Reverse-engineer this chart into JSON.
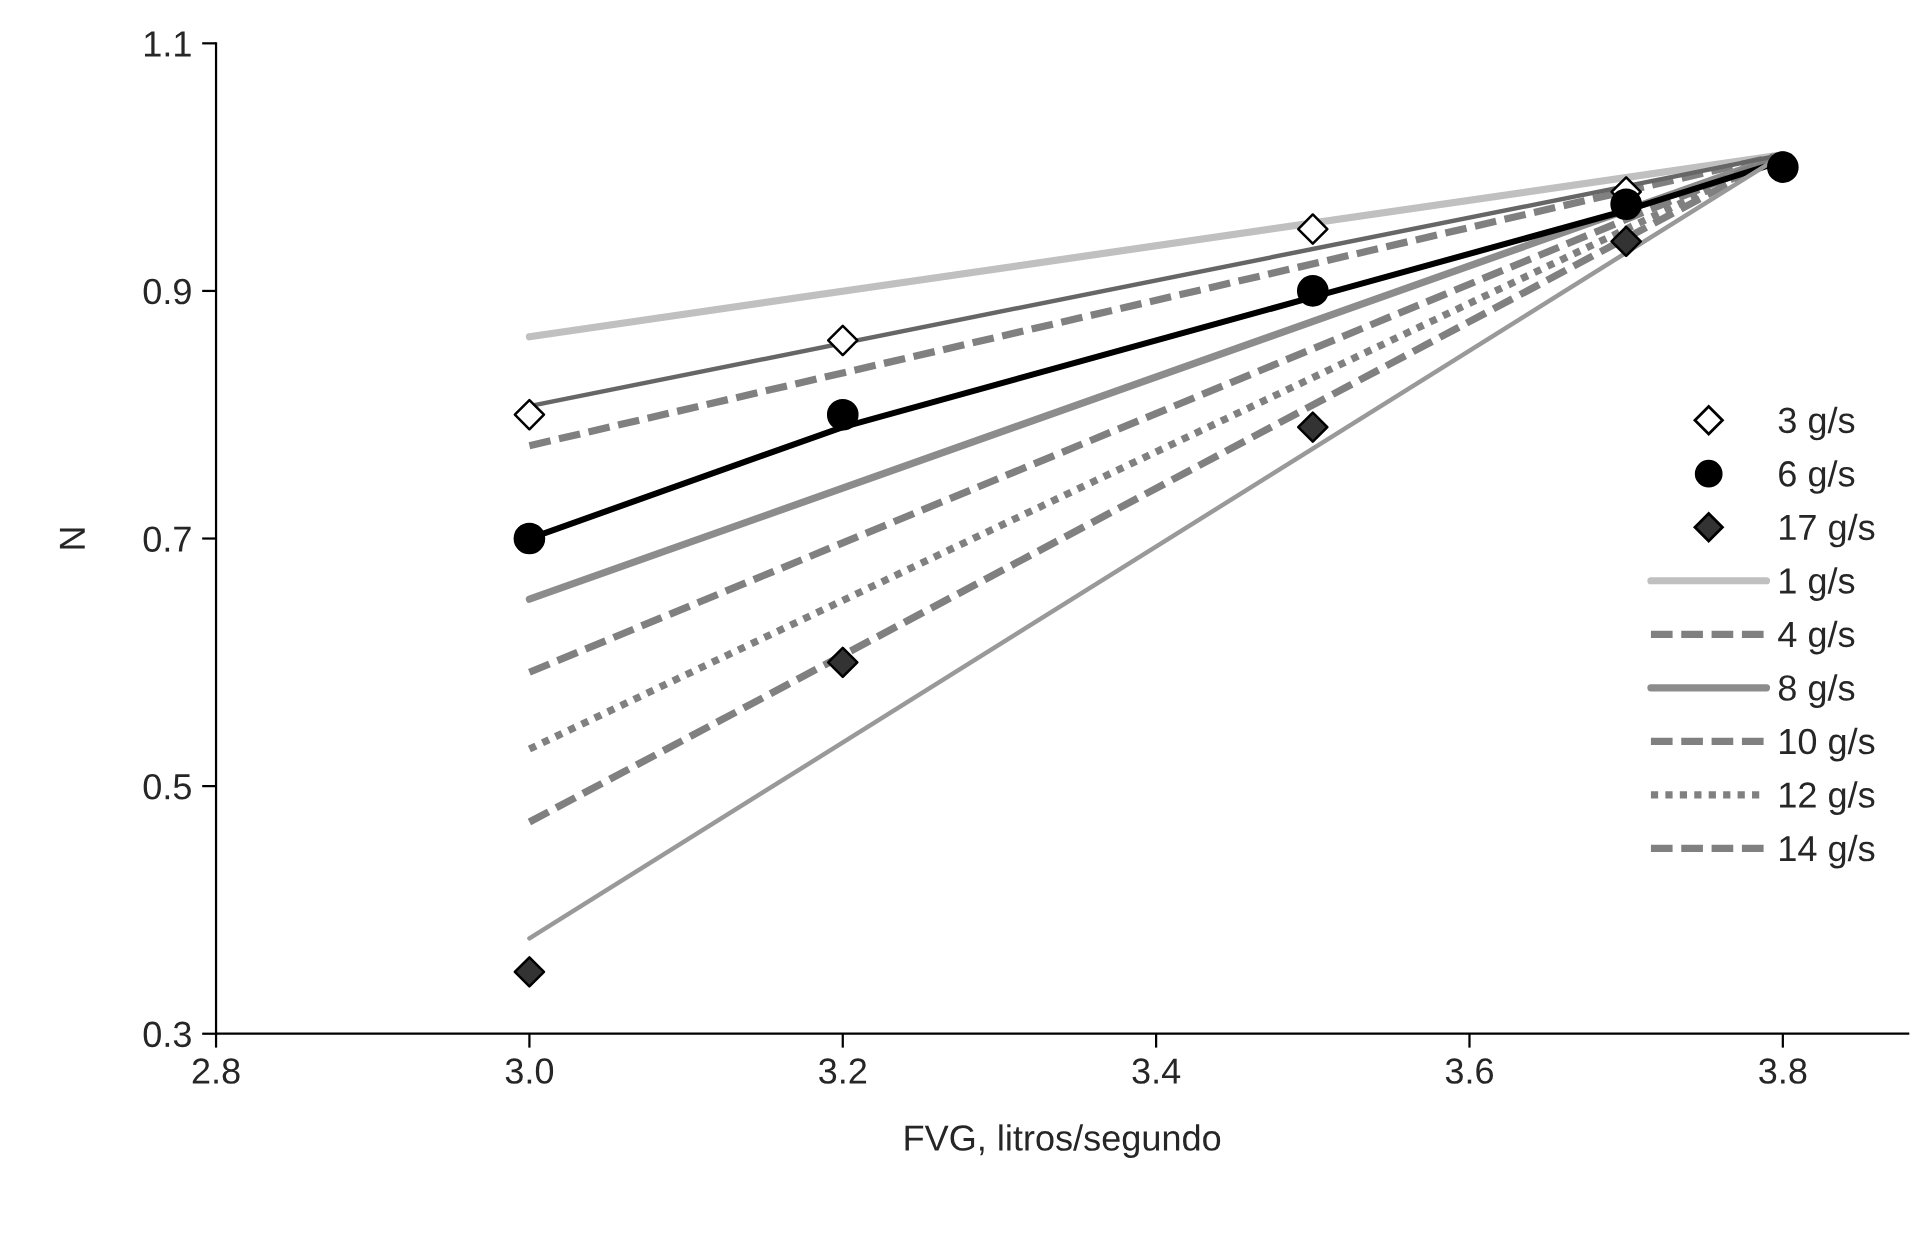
{
  "chart_data": {
    "type": "line",
    "xlabel": "FVG, litros/segundo",
    "ylabel": "N",
    "xlim": [
      2.8,
      3.88
    ],
    "xticks": [
      2.8,
      {
        "value": 3.0,
        "label": "3.0"
      },
      3.2,
      3.4,
      3.6,
      3.8
    ],
    "ylim": [
      0.3,
      1.1
    ],
    "yticks": [
      0.3,
      0.5,
      0.7,
      0.9,
      1.1
    ],
    "grid": false,
    "legend": "right",
    "series": [
      {
        "name": "3 g/s",
        "type": "scatter",
        "marker": "diamond",
        "color": "#ffffff",
        "x": [
          3.0,
          3.2,
          3.5,
          3.7
        ],
        "values": [
          0.8,
          0.86,
          0.95,
          0.98
        ]
      },
      {
        "name": "6 g/s",
        "type": "scatter",
        "marker": "circle",
        "color": "#000000",
        "x": [
          3.0,
          3.2,
          3.5,
          3.7,
          3.8
        ],
        "values": [
          0.7,
          0.8,
          0.9,
          0.97,
          1.0
        ]
      },
      {
        "name": "17 g/s",
        "type": "scatter",
        "marker": "diamond",
        "color": "#333333",
        "x": [
          3.0,
          3.2,
          3.5,
          3.7
        ],
        "values": [
          0.35,
          0.6,
          0.79,
          0.94
        ]
      },
      {
        "name": "1 g/s",
        "line_style": "solid",
        "color": "#c0c0c0",
        "x": [
          3.0,
          3.8
        ],
        "values": [
          0.863,
          1.01
        ]
      },
      {
        "name": "4 g/s",
        "line_style": "dashed",
        "color": "#808080",
        "x": [
          3.0,
          3.8
        ],
        "values": [
          0.775,
          1.01
        ]
      },
      {
        "name": "8 g/s",
        "line_style": "solid",
        "color": "#8c8c8c",
        "x": [
          3.0,
          3.8
        ],
        "values": [
          0.651,
          1.01
        ]
      },
      {
        "name": "10 g/s",
        "line_style": "dashed",
        "color": "#808080",
        "x": [
          3.0,
          3.8
        ],
        "values": [
          0.592,
          1.01
        ]
      },
      {
        "name": "12 g/s",
        "line_style": "dotted",
        "color": "#808080",
        "x": [
          3.0,
          3.8
        ],
        "values": [
          0.53,
          1.01
        ]
      },
      {
        "name": "14 g/s",
        "line_style": "dashed",
        "color": "#808080",
        "x": [
          3.0,
          3.8
        ],
        "values": [
          0.471,
          1.01
        ]
      },
      {
        "line_style": "solid",
        "color": "#666666",
        "x": [
          3.0,
          3.8
        ],
        "values": [
          0.807,
          1.01
        ]
      },
      {
        "line_style": "solid",
        "color": "#000000",
        "x": [
          3.0,
          3.2,
          3.5,
          3.7,
          3.8
        ],
        "values": [
          0.7,
          0.79,
          0.895,
          0.965,
          1.005
        ]
      },
      {
        "line_style": "solid",
        "color": "#999999",
        "x": [
          3.0,
          3.8
        ],
        "values": [
          0.377,
          1.01
        ]
      }
    ]
  }
}
